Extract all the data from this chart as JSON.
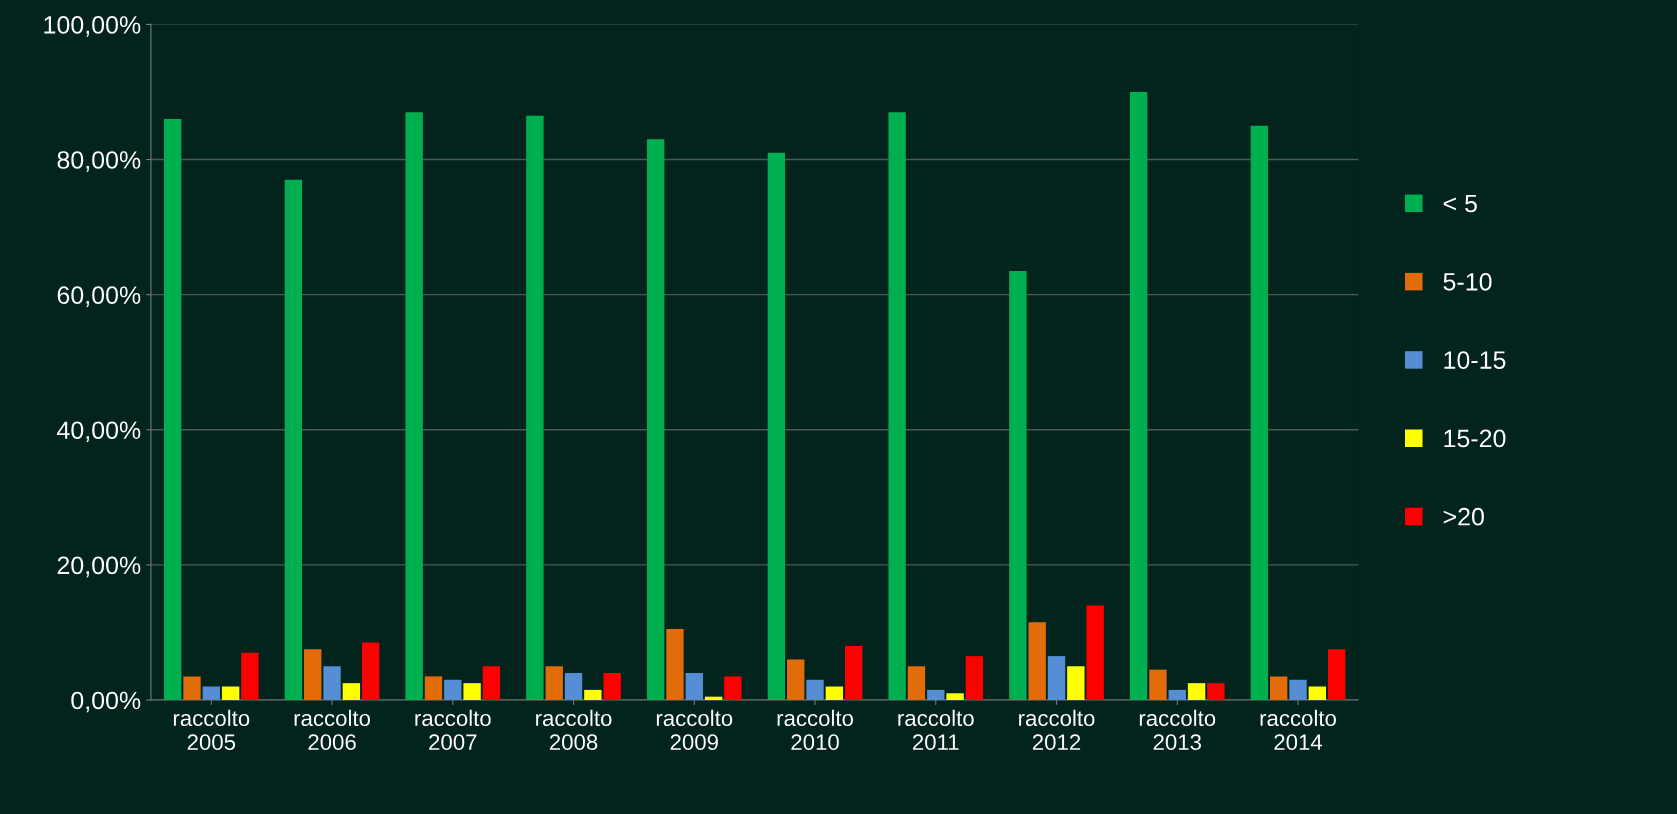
{
  "chart_data": {
    "type": "bar",
    "categories": [
      "raccolto\n2005",
      "raccolto\n2006",
      "raccolto\n2007",
      "raccolto\n2008",
      "raccolto\n2009",
      "raccolto\n2010",
      "raccolto\n2011",
      "raccolto\n2012",
      "raccolto\n2013",
      "raccolto\n2014"
    ],
    "series": [
      {
        "name": "< 5",
        "color": "#00b050",
        "values": [
          86,
          77,
          87,
          86.5,
          83,
          81,
          87,
          63.5,
          90,
          85
        ]
      },
      {
        "name": "5-10",
        "color": "#e36c0a",
        "values": [
          3.5,
          7.5,
          3.5,
          5,
          10.5,
          6,
          5,
          11.5,
          4.5,
          3.5
        ]
      },
      {
        "name": "10-15",
        "color": "#558ed5",
        "values": [
          2,
          5,
          3,
          4,
          4,
          3,
          1.5,
          6.5,
          1.5,
          3
        ]
      },
      {
        "name": "15-20",
        "color": "#ffff00",
        "values": [
          2,
          2.5,
          2.5,
          1.5,
          0.5,
          2,
          1,
          5,
          2.5,
          2
        ]
      },
      {
        "name": ">20",
        "color": "#ff0000",
        "values": [
          7,
          8.5,
          5,
          4,
          3.5,
          8,
          6.5,
          14,
          2.5,
          7.5
        ]
      }
    ],
    "ylim": [
      0,
      100
    ],
    "yticks": [
      {
        "value": 0,
        "label": "0,00%"
      },
      {
        "value": 20,
        "label": "20,00%"
      },
      {
        "value": 40,
        "label": "40,00%"
      },
      {
        "value": 60,
        "label": "60,00%"
      },
      {
        "value": 80,
        "label": "80,00%"
      },
      {
        "value": 100,
        "label": "100,00%"
      }
    ],
    "grid": "y",
    "legend": "right"
  }
}
